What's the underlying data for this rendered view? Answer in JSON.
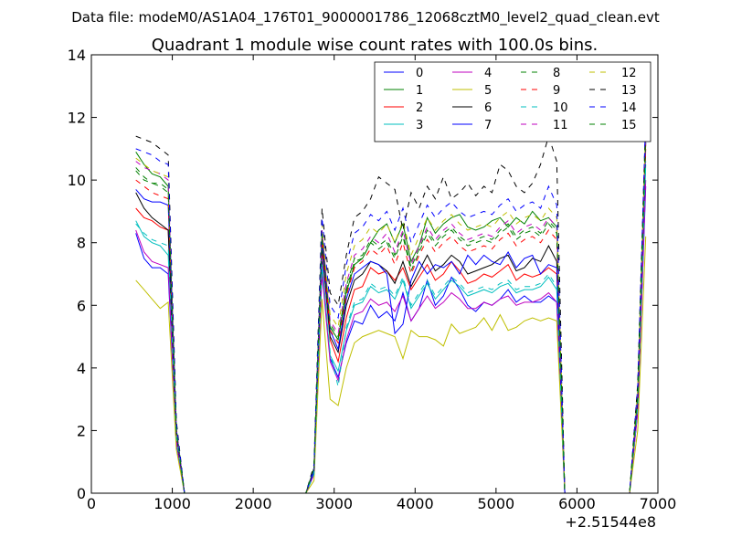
{
  "chart_data": {
    "type": "line",
    "suptitle": "Data file: modeM0/AS1A04_176T01_9000001786_12068cztM0_level2_quad_clean.evt",
    "title": "Quadrant 1 module wise count rates with 100.0s bins.",
    "xlabel": "",
    "ylabel": "",
    "x_offset_label": "+2.51544e8",
    "xlim": [
      0,
      7000
    ],
    "ylim": [
      0,
      14
    ],
    "x_ticks": [
      0,
      1000,
      2000,
      3000,
      4000,
      5000,
      6000,
      7000
    ],
    "y_ticks": [
      0,
      2,
      4,
      6,
      8,
      10,
      12,
      14
    ],
    "grid": false,
    "legend": "top-right",
    "x": [
      550,
      650,
      750,
      850,
      950,
      1050,
      1150,
      1250,
      1350,
      1450,
      1550,
      1650,
      1750,
      1850,
      1950,
      2050,
      2150,
      2250,
      2350,
      2450,
      2550,
      2650,
      2750,
      2850,
      2950,
      3050,
      3150,
      3250,
      3350,
      3450,
      3550,
      3650,
      3750,
      3850,
      3950,
      4050,
      4150,
      4250,
      4350,
      4450,
      4550,
      4650,
      4750,
      4850,
      4950,
      5050,
      5150,
      5250,
      5350,
      5450,
      5550,
      5650,
      5750,
      5850,
      5950,
      6050,
      6150,
      6250,
      6350,
      6450,
      6550,
      6650,
      6750,
      6850
    ],
    "series": [
      {
        "name": "0",
        "color": "#0000ff",
        "dash": "solid",
        "values": [
          8.3,
          7.5,
          7.2,
          7.2,
          7.0,
          1.6,
          0,
          0,
          0,
          0,
          0,
          0,
          0,
          0,
          0,
          0,
          0,
          0,
          0,
          0,
          0,
          0,
          0.6,
          7.4,
          4.3,
          3.7,
          4.8,
          5.5,
          5.4,
          6.0,
          5.6,
          5.8,
          5.5,
          6.4,
          5.5,
          5.9,
          6.8,
          6.0,
          6.3,
          6.9,
          6.5,
          6.0,
          5.8,
          6.1,
          6.0,
          6.2,
          6.5,
          6.1,
          6.3,
          6.1,
          6.1,
          6.3,
          6.1,
          0,
          0,
          0,
          0,
          0,
          0,
          0,
          0,
          0,
          2.6,
          9.8
        ]
      },
      {
        "name": "1",
        "color": "#008000",
        "dash": "solid",
        "values": [
          10.9,
          10.5,
          10.2,
          10.1,
          9.8,
          2.0,
          0,
          0,
          0,
          0,
          0,
          0,
          0,
          0,
          0,
          0,
          0,
          0,
          0,
          0,
          0,
          0,
          0.8,
          8.3,
          5.3,
          4.9,
          6.4,
          7.3,
          7.5,
          8.0,
          8.4,
          8.6,
          8.0,
          8.6,
          7.4,
          7.9,
          8.8,
          8.3,
          8.6,
          8.8,
          8.9,
          8.5,
          8.4,
          8.5,
          8.7,
          8.8,
          8.5,
          8.8,
          8.6,
          9.0,
          8.7,
          8.8,
          8.5,
          0,
          0,
          0,
          0,
          0,
          0,
          0,
          0,
          0,
          3.1,
          11.6
        ]
      },
      {
        "name": "2",
        "color": "#ff0000",
        "dash": "solid",
        "values": [
          9.1,
          8.8,
          8.7,
          8.5,
          8.4,
          1.9,
          0,
          0,
          0,
          0,
          0,
          0,
          0,
          0,
          0,
          0,
          0,
          0,
          0,
          0,
          0,
          0,
          0.7,
          7.8,
          4.9,
          4.2,
          5.6,
          6.5,
          6.6,
          7.2,
          7.0,
          7.1,
          6.8,
          7.2,
          6.5,
          6.9,
          7.3,
          6.8,
          7.0,
          7.4,
          7.1,
          6.7,
          6.8,
          7.0,
          6.9,
          7.1,
          7.3,
          6.8,
          7.0,
          6.9,
          7.0,
          7.2,
          7.0,
          0,
          0,
          0,
          0,
          0,
          0,
          0,
          0,
          0,
          2.9,
          11.0
        ]
      },
      {
        "name": "3",
        "color": "#00bfbf",
        "dash": "solid",
        "values": [
          8.7,
          8.2,
          8.0,
          7.9,
          7.6,
          1.8,
          0,
          0,
          0,
          0,
          0,
          0,
          0,
          0,
          0,
          0,
          0,
          0,
          0,
          0,
          0,
          0,
          0.6,
          7.2,
          4.4,
          3.9,
          5.2,
          6.0,
          6.1,
          6.6,
          6.4,
          6.5,
          6.2,
          6.8,
          5.9,
          6.3,
          6.7,
          6.2,
          6.5,
          6.8,
          6.6,
          6.3,
          6.4,
          6.5,
          6.4,
          6.6,
          6.7,
          6.4,
          6.5,
          6.5,
          6.6,
          6.9,
          6.5,
          0,
          0,
          0,
          0,
          0,
          0,
          0,
          0,
          0,
          2.7,
          10.5
        ]
      },
      {
        "name": "4",
        "color": "#bf00bf",
        "dash": "solid",
        "values": [
          8.4,
          7.7,
          7.4,
          7.3,
          7.2,
          1.7,
          0,
          0,
          0,
          0,
          0,
          0,
          0,
          0,
          0,
          0,
          0,
          0,
          0,
          0,
          0,
          0,
          0.6,
          7.0,
          4.2,
          3.6,
          4.9,
          5.7,
          5.8,
          6.2,
          6.0,
          6.1,
          5.8,
          6.3,
          5.5,
          5.9,
          6.3,
          5.9,
          6.1,
          6.4,
          6.2,
          5.9,
          5.9,
          6.1,
          6.0,
          6.2,
          6.3,
          6.0,
          6.1,
          6.1,
          6.2,
          6.4,
          6.1,
          0,
          0,
          0,
          0,
          0,
          0,
          0,
          0,
          0,
          2.6,
          10.0
        ]
      },
      {
        "name": "5",
        "color": "#bfbf00",
        "dash": "solid",
        "values": [
          6.8,
          6.5,
          6.2,
          5.9,
          6.1,
          1.4,
          0,
          0,
          0,
          0,
          0,
          0,
          0,
          0,
          0,
          0,
          0,
          0,
          0,
          0,
          0,
          0,
          0.4,
          6.2,
          3.0,
          2.8,
          4.0,
          4.8,
          5.0,
          5.1,
          5.2,
          5.1,
          5.0,
          4.3,
          5.2,
          5.0,
          5.0,
          4.9,
          4.7,
          5.4,
          5.1,
          5.2,
          5.3,
          5.6,
          5.2,
          5.7,
          5.2,
          5.3,
          5.5,
          5.6,
          5.5,
          5.6,
          5.5,
          0,
          0,
          0,
          0,
          0,
          0,
          0,
          0,
          0,
          2.0,
          8.2
        ]
      },
      {
        "name": "6",
        "color": "#000000",
        "dash": "solid",
        "values": [
          9.6,
          9.1,
          8.8,
          8.6,
          8.4,
          1.9,
          0,
          0,
          0,
          0,
          0,
          0,
          0,
          0,
          0,
          0,
          0,
          0,
          0,
          0,
          0,
          0,
          0.7,
          7.9,
          5.0,
          4.5,
          6.0,
          6.8,
          7.0,
          7.4,
          7.3,
          7.1,
          6.7,
          7.4,
          6.6,
          7.1,
          7.6,
          7.1,
          7.3,
          7.6,
          7.4,
          7.0,
          7.1,
          7.2,
          7.3,
          7.5,
          7.6,
          7.1,
          7.2,
          7.5,
          7.4,
          7.9,
          7.4,
          0,
          0,
          0,
          0,
          0,
          0,
          0,
          0,
          0,
          2.9,
          11.2
        ]
      },
      {
        "name": "7",
        "color": "#0000ff",
        "dash": "solid",
        "values": [
          9.7,
          9.4,
          9.3,
          9.3,
          9.2,
          2.0,
          0,
          0,
          0,
          0,
          0,
          0,
          0,
          0,
          0,
          0,
          0,
          0,
          0,
          0,
          0,
          0,
          0.7,
          8.0,
          5.2,
          4.6,
          6.2,
          7.0,
          7.2,
          7.4,
          7.3,
          7.0,
          5.1,
          5.4,
          6.8,
          7.4,
          7.0,
          7.3,
          7.2,
          7.4,
          7.0,
          7.6,
          7.3,
          7.6,
          7.4,
          7.3,
          7.7,
          7.2,
          7.5,
          7.6,
          7.0,
          7.3,
          7.2,
          0,
          0,
          0,
          0,
          0,
          0,
          0,
          0,
          0,
          3.0,
          11.3
        ]
      },
      {
        "name": "8",
        "color": "#008000",
        "dash": "dashed",
        "values": [
          10.4,
          10.1,
          9.9,
          9.9,
          9.7,
          2.1,
          0,
          0,
          0,
          0,
          0,
          0,
          0,
          0,
          0,
          0,
          0,
          0,
          0,
          0,
          0,
          0,
          0.8,
          8.3,
          5.4,
          5.0,
          6.6,
          7.5,
          7.6,
          8.1,
          7.9,
          8.1,
          7.6,
          8.3,
          7.2,
          7.8,
          8.4,
          8.0,
          8.3,
          8.5,
          8.2,
          8.0,
          8.1,
          8.2,
          8.1,
          8.4,
          8.6,
          8.2,
          8.4,
          8.5,
          8.3,
          8.7,
          8.4,
          0,
          0,
          0,
          0,
          0,
          0,
          0,
          0,
          0,
          3.2,
          11.5
        ]
      },
      {
        "name": "9",
        "color": "#ff0000",
        "dash": "dashed",
        "values": [
          10.0,
          9.8,
          9.6,
          9.5,
          9.4,
          2.0,
          0,
          0,
          0,
          0,
          0,
          0,
          0,
          0,
          0,
          0,
          0,
          0,
          0,
          0,
          0,
          0,
          0.8,
          8.1,
          5.2,
          4.8,
          6.3,
          7.2,
          7.4,
          7.8,
          7.6,
          7.9,
          7.3,
          8.0,
          7.0,
          7.6,
          8.1,
          7.7,
          8.0,
          8.2,
          7.9,
          7.7,
          7.8,
          7.9,
          7.8,
          8.1,
          8.3,
          7.9,
          8.1,
          8.2,
          8.0,
          8.4,
          8.1,
          0,
          0,
          0,
          0,
          0,
          0,
          0,
          0,
          0,
          3.1,
          11.2
        ]
      },
      {
        "name": "10",
        "color": "#00bfbf",
        "dash": "dashed",
        "values": [
          8.6,
          8.3,
          8.1,
          8.0,
          7.9,
          1.8,
          0,
          0,
          0,
          0,
          0,
          0,
          0,
          0,
          0,
          0,
          0,
          0,
          0,
          0,
          0,
          0,
          0.6,
          7.3,
          4.5,
          3.4,
          5.3,
          6.1,
          6.2,
          6.7,
          6.5,
          6.6,
          6.3,
          6.9,
          6.0,
          6.4,
          6.8,
          6.3,
          6.6,
          6.9,
          6.7,
          6.4,
          6.5,
          6.6,
          6.5,
          6.7,
          6.8,
          6.5,
          6.6,
          6.6,
          6.7,
          7.0,
          6.6,
          0,
          0,
          0,
          0,
          0,
          0,
          0,
          0,
          0,
          2.8,
          10.6
        ]
      },
      {
        "name": "11",
        "color": "#bf00bf",
        "dash": "dashed",
        "values": [
          10.6,
          10.4,
          10.3,
          10.2,
          10.0,
          2.1,
          0,
          0,
          0,
          0,
          0,
          0,
          0,
          0,
          0,
          0,
          0,
          0,
          0,
          0,
          0,
          0,
          0.8,
          8.4,
          5.5,
          5.1,
          6.7,
          7.6,
          7.8,
          8.2,
          8.0,
          8.3,
          7.7,
          8.4,
          7.3,
          7.9,
          8.5,
          8.1,
          8.4,
          8.6,
          8.3,
          8.1,
          8.2,
          8.3,
          8.2,
          8.5,
          8.7,
          8.3,
          8.5,
          8.6,
          8.4,
          8.8,
          8.5,
          0,
          0,
          0,
          0,
          0,
          0,
          0,
          0,
          0,
          3.2,
          11.6
        ]
      },
      {
        "name": "12",
        "color": "#bfbf00",
        "dash": "dashed",
        "values": [
          10.7,
          10.5,
          10.3,
          10.2,
          10.1,
          2.1,
          0,
          0,
          0,
          0,
          0,
          0,
          0,
          0,
          0,
          0,
          0,
          0,
          0,
          0,
          0,
          0,
          0.8,
          8.6,
          5.7,
          5.3,
          7.0,
          7.9,
          8.1,
          8.5,
          8.3,
          8.6,
          8.0,
          8.7,
          7.6,
          8.2,
          8.8,
          8.4,
          8.7,
          8.9,
          8.6,
          8.4,
          8.5,
          8.6,
          8.5,
          8.8,
          9.0,
          8.6,
          8.8,
          8.9,
          8.7,
          9.1,
          8.8,
          0,
          0,
          0,
          0,
          0,
          0,
          0,
          0,
          0,
          3.3,
          11.8
        ]
      },
      {
        "name": "13",
        "color": "#000000",
        "dash": "dashed",
        "values": [
          11.4,
          11.3,
          11.2,
          11.0,
          10.8,
          2.3,
          0,
          0,
          0,
          0,
          0,
          0,
          0,
          0,
          0,
          0,
          0,
          0,
          0,
          0,
          0,
          0,
          0.9,
          9.1,
          6.4,
          6.0,
          7.6,
          8.8,
          9.0,
          9.4,
          10.1,
          9.9,
          9.7,
          8.4,
          9.6,
          9.1,
          9.8,
          9.4,
          10.1,
          9.4,
          9.6,
          9.9,
          9.5,
          9.8,
          9.6,
          10.5,
          10.3,
          9.8,
          9.6,
          9.9,
          10.5,
          11.4,
          10.6,
          0,
          0,
          0,
          0,
          0,
          0,
          0,
          0,
          0,
          3.5,
          12.0
        ]
      },
      {
        "name": "14",
        "color": "#0000ff",
        "dash": "dashed",
        "values": [
          11.0,
          10.9,
          10.8,
          10.6,
          10.5,
          2.2,
          0,
          0,
          0,
          0,
          0,
          0,
          0,
          0,
          0,
          0,
          0,
          0,
          0,
          0,
          0,
          0,
          0.8,
          8.8,
          6.0,
          5.6,
          7.3,
          8.3,
          8.5,
          8.9,
          8.7,
          9.0,
          8.4,
          9.1,
          8.0,
          8.6,
          9.2,
          8.8,
          9.1,
          9.3,
          9.0,
          8.8,
          8.9,
          9.0,
          8.9,
          9.2,
          9.4,
          9.0,
          9.2,
          9.3,
          9.1,
          9.8,
          9.2,
          0,
          0,
          0,
          0,
          0,
          0,
          0,
          0,
          0,
          3.4,
          12.1
        ]
      },
      {
        "name": "15",
        "color": "#008000",
        "dash": "dashed",
        "values": [
          10.3,
          10.0,
          9.9,
          9.8,
          9.6,
          2.0,
          0,
          0,
          0,
          0,
          0,
          0,
          0,
          0,
          0,
          0,
          0,
          0,
          0,
          0,
          0,
          0,
          0.8,
          8.2,
          5.3,
          4.9,
          6.5,
          7.4,
          7.5,
          8.0,
          7.8,
          8.0,
          7.5,
          8.2,
          7.1,
          7.7,
          8.3,
          7.9,
          8.2,
          8.4,
          8.1,
          7.9,
          8.0,
          8.1,
          8.0,
          8.3,
          8.5,
          8.1,
          8.3,
          8.4,
          8.2,
          8.6,
          8.3,
          0,
          0,
          0,
          0,
          0,
          0,
          0,
          0,
          0,
          3.1,
          11.4
        ]
      }
    ]
  }
}
